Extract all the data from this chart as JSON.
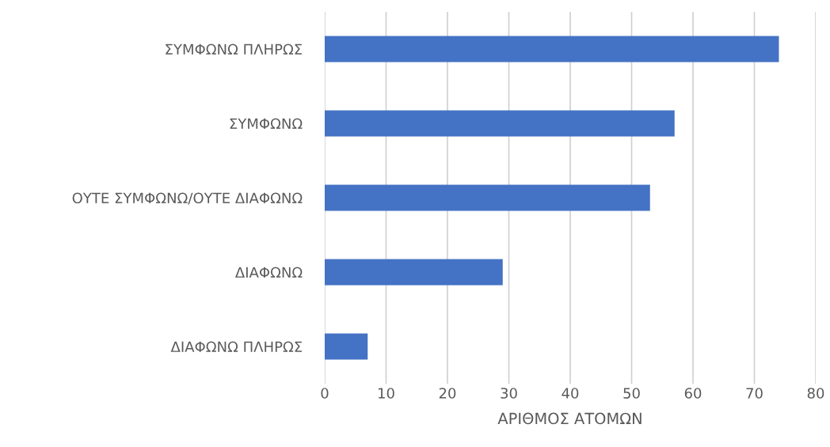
{
  "chart_data": {
    "type": "bar",
    "orientation": "horizontal",
    "categories": [
      "ΣΥΜΦΩΝΩ ΠΛΗΡΩΣ",
      "ΣΥΜΦΩΝΩ",
      "ΟΥΤΕ ΣΥΜΦΩΝΩ/ΟΥΤΕ ΔΙΑΦΩΝΩ",
      "ΔΙΑΦΩΝΩ",
      "ΔΙΑΦΩΝΩ ΠΛΗΡΩΣ"
    ],
    "values": [
      74,
      57,
      53,
      29,
      7
    ],
    "color": "#4472c4",
    "xlim": [
      0,
      80
    ],
    "xticks": [
      0,
      10,
      20,
      30,
      40,
      50,
      60,
      70,
      80
    ],
    "xlabel": "ΑΡΙΘΜΟΣ ΑΤΟΜΩΝ",
    "grid": "x"
  }
}
